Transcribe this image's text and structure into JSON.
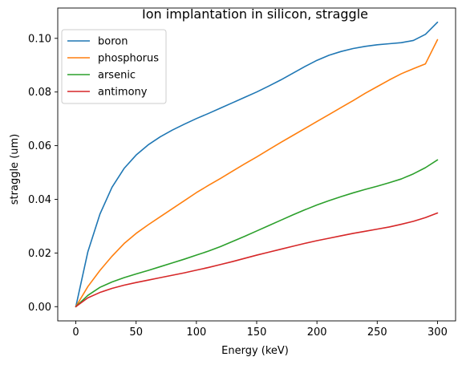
{
  "chart_data": {
    "type": "line",
    "title": "Ion implantation in silicon, straggle",
    "xlabel": "Energy (keV)",
    "ylabel": "straggle (um)",
    "xlim": [
      -15,
      315
    ],
    "ylim": [
      -0.0053,
      0.1113
    ],
    "xticks": [
      0,
      50,
      100,
      150,
      200,
      250,
      300
    ],
    "xtick_labels": [
      "0",
      "50",
      "100",
      "150",
      "200",
      "250",
      "300"
    ],
    "yticks": [
      0.0,
      0.02,
      0.04,
      0.06,
      0.08,
      0.1
    ],
    "ytick_labels": [
      "0.00",
      "0.02",
      "0.04",
      "0.06",
      "0.08",
      "0.10"
    ],
    "grid": false,
    "legend_position": "top-left",
    "x": [
      0,
      10,
      20,
      30,
      40,
      50,
      60,
      70,
      80,
      90,
      100,
      110,
      120,
      130,
      140,
      150,
      160,
      170,
      180,
      190,
      200,
      210,
      220,
      230,
      240,
      250,
      260,
      270,
      280,
      290,
      300
    ],
    "series": [
      {
        "name": "boron",
        "color": "#1f77b4",
        "values": [
          0.0,
          0.0205,
          0.0345,
          0.0445,
          0.0515,
          0.0565,
          0.0603,
          0.0633,
          0.0658,
          0.068,
          0.0701,
          0.072,
          0.074,
          0.076,
          0.078,
          0.08,
          0.0822,
          0.0845,
          0.087,
          0.0895,
          0.0918,
          0.0937,
          0.0951,
          0.0962,
          0.097,
          0.0976,
          0.098,
          0.0984,
          0.0992,
          0.1015,
          0.106
        ]
      },
      {
        "name": "phosphorus",
        "color": "#ff7f0e",
        "values": [
          0.0,
          0.0075,
          0.0135,
          0.0188,
          0.0235,
          0.0273,
          0.0305,
          0.0335,
          0.0365,
          0.0395,
          0.0425,
          0.0452,
          0.0478,
          0.0505,
          0.0532,
          0.0558,
          0.0585,
          0.0612,
          0.0638,
          0.0664,
          0.069,
          0.0716,
          0.0742,
          0.0768,
          0.0795,
          0.082,
          0.0845,
          0.0868,
          0.0887,
          0.0905,
          0.0995
        ]
      },
      {
        "name": "arsenic",
        "color": "#2ca02c",
        "values": [
          0.0,
          0.0042,
          0.0072,
          0.0092,
          0.0108,
          0.0122,
          0.0135,
          0.0149,
          0.0163,
          0.0177,
          0.0192,
          0.0207,
          0.0224,
          0.0243,
          0.0262,
          0.0282,
          0.0302,
          0.0322,
          0.0342,
          0.0361,
          0.0379,
          0.0395,
          0.041,
          0.0424,
          0.0437,
          0.0449,
          0.0462,
          0.0476,
          0.0495,
          0.0518,
          0.0547
        ]
      },
      {
        "name": "antimony",
        "color": "#d62728",
        "values": [
          0.0,
          0.0033,
          0.0053,
          0.0068,
          0.008,
          0.009,
          0.0099,
          0.0108,
          0.0117,
          0.0126,
          0.0136,
          0.0146,
          0.0157,
          0.0168,
          0.018,
          0.0192,
          0.0203,
          0.0214,
          0.0225,
          0.0236,
          0.0246,
          0.0255,
          0.0264,
          0.0273,
          0.0281,
          0.0289,
          0.0297,
          0.0307,
          0.0318,
          0.0332,
          0.0349
        ]
      }
    ]
  }
}
